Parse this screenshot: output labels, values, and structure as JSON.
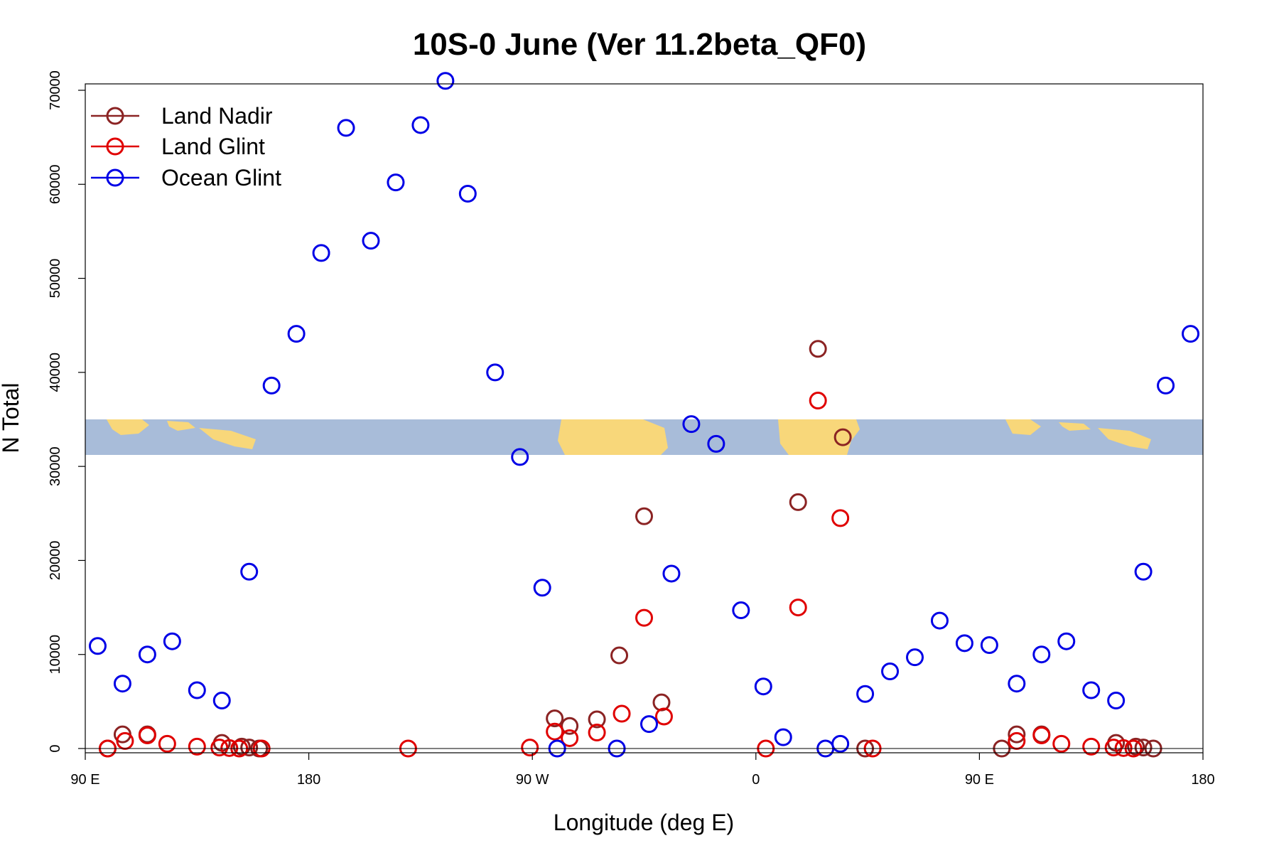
{
  "chart_data": {
    "type": "scatter",
    "title": "10S-0 June (Ver 11.2beta_QF0)",
    "xlabel": "Longitude (deg E)",
    "ylabel": "N Total",
    "xlim": [
      0,
      450
    ],
    "ylim": [
      0,
      70000
    ],
    "x_ticks": [
      {
        "value": 0,
        "label": "90 E"
      },
      {
        "value": 90,
        "label": "180"
      },
      {
        "value": 180,
        "label": "90 W"
      },
      {
        "value": 270,
        "label": "0"
      },
      {
        "value": 360,
        "label": "90 E"
      },
      {
        "value": 450,
        "label": "180"
      }
    ],
    "y_ticks": [
      {
        "value": 0,
        "label": "0"
      },
      {
        "value": 10000,
        "label": "10000"
      },
      {
        "value": 20000,
        "label": "20000"
      },
      {
        "value": 30000,
        "label": "30000"
      },
      {
        "value": 40000,
        "label": "40000"
      },
      {
        "value": 50000,
        "label": "50000"
      },
      {
        "value": 60000,
        "label": "60000"
      },
      {
        "value": 70000,
        "label": "70000"
      }
    ],
    "legend_position": "top-left",
    "series": [
      {
        "name": "Land Nadir",
        "color": "#8b2323",
        "points": [
          [
            9,
            0
          ],
          [
            15,
            1500
          ],
          [
            25,
            1500
          ],
          [
            55,
            600
          ],
          [
            63,
            200
          ],
          [
            66,
            100
          ],
          [
            70,
            0
          ],
          [
            189,
            3200
          ],
          [
            195,
            2400
          ],
          [
            206,
            3100
          ],
          [
            215,
            9900
          ],
          [
            225,
            24700
          ],
          [
            232,
            4900
          ],
          [
            287,
            26200
          ],
          [
            295,
            42500
          ],
          [
            305,
            33100
          ],
          [
            314,
            0
          ],
          [
            369,
            0
          ],
          [
            375,
            1500
          ],
          [
            385,
            1500
          ],
          [
            415,
            600
          ],
          [
            423,
            200
          ],
          [
            426,
            100
          ],
          [
            430,
            0
          ]
        ]
      },
      {
        "name": "Land Glint",
        "color": "#e00000",
        "points": [
          [
            9,
            0
          ],
          [
            16,
            800
          ],
          [
            25,
            1400
          ],
          [
            33,
            500
          ],
          [
            45,
            200
          ],
          [
            54,
            100
          ],
          [
            58,
            50
          ],
          [
            62,
            0
          ],
          [
            71,
            0
          ],
          [
            130,
            0
          ],
          [
            179,
            100
          ],
          [
            189,
            1800
          ],
          [
            195,
            1100
          ],
          [
            206,
            1700
          ],
          [
            216,
            3700
          ],
          [
            225,
            13900
          ],
          [
            233,
            3400
          ],
          [
            274,
            0
          ],
          [
            287,
            15000
          ],
          [
            295,
            37000
          ],
          [
            304,
            24500
          ],
          [
            317,
            0
          ],
          [
            375,
            800
          ],
          [
            385,
            1400
          ],
          [
            393,
            500
          ],
          [
            405,
            200
          ],
          [
            414,
            100
          ],
          [
            418,
            50
          ],
          [
            422,
            0
          ]
        ]
      },
      {
        "name": "Ocean Glint",
        "color": "#0000e6",
        "points": [
          [
            5,
            10900
          ],
          [
            15,
            6900
          ],
          [
            25,
            10000
          ],
          [
            35,
            11400
          ],
          [
            45,
            6200
          ],
          [
            55,
            5100
          ],
          [
            66,
            18800
          ],
          [
            75,
            38600
          ],
          [
            85,
            44100
          ],
          [
            95,
            52700
          ],
          [
            105,
            66000
          ],
          [
            115,
            54000
          ],
          [
            125,
            60200
          ],
          [
            135,
            66300
          ],
          [
            145,
            71000
          ],
          [
            154,
            59000
          ],
          [
            165,
            40000
          ],
          [
            175,
            31000
          ],
          [
            184,
            17100
          ],
          [
            190,
            0
          ],
          [
            214,
            0
          ],
          [
            227,
            2600
          ],
          [
            236,
            18600
          ],
          [
            244,
            34500
          ],
          [
            254,
            32400
          ],
          [
            264,
            14700
          ],
          [
            273,
            6600
          ],
          [
            281,
            1200
          ],
          [
            298,
            0
          ],
          [
            304,
            500
          ],
          [
            314,
            5800
          ],
          [
            324,
            8200
          ],
          [
            334,
            9700
          ],
          [
            344,
            13600
          ],
          [
            354,
            11200
          ],
          [
            364,
            11000
          ],
          [
            375,
            6900
          ],
          [
            385,
            10000
          ],
          [
            395,
            11400
          ],
          [
            405,
            6200
          ],
          [
            415,
            5100
          ],
          [
            426,
            18800
          ],
          [
            435,
            38600
          ],
          [
            445,
            44100
          ]
        ]
      }
    ]
  }
}
